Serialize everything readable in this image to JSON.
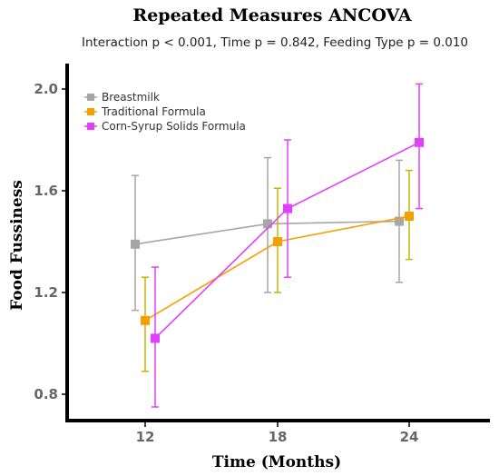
{
  "chart_data": {
    "type": "line",
    "title": "Repeated Measures ANCOVA",
    "subtitle": "Interaction p < 0.001, Time p = 0.842, Feeding Type p = 0.010",
    "xlabel": "Time (Months)",
    "ylabel": "Food Fussiness",
    "categories": [
      "12",
      "18",
      "24"
    ],
    "yticks": [
      "0.8",
      "1.2",
      "1.6",
      "2.0"
    ],
    "ylim": [
      0.7,
      2.1
    ],
    "legend_position": "top-left",
    "grid": false,
    "series": [
      {
        "name": "Breastmilk",
        "color": "#a6a6a6",
        "values": [
          1.39,
          1.47,
          1.48
        ],
        "lower": [
          1.13,
          1.2,
          1.24
        ],
        "upper": [
          1.66,
          1.73,
          1.72
        ]
      },
      {
        "name": "Traditional Formula",
        "color": "#f5a000",
        "error_color": "#c8b400",
        "values": [
          1.09,
          1.4,
          1.5
        ],
        "lower": [
          0.89,
          1.2,
          1.33
        ],
        "upper": [
          1.26,
          1.61,
          1.68
        ]
      },
      {
        "name": "Corn-Syrup Solids Formula",
        "color": "#e040fb",
        "values": [
          1.02,
          1.53,
          1.79
        ],
        "lower": [
          0.75,
          1.26,
          1.53
        ],
        "upper": [
          1.3,
          1.8,
          2.02
        ]
      }
    ]
  }
}
